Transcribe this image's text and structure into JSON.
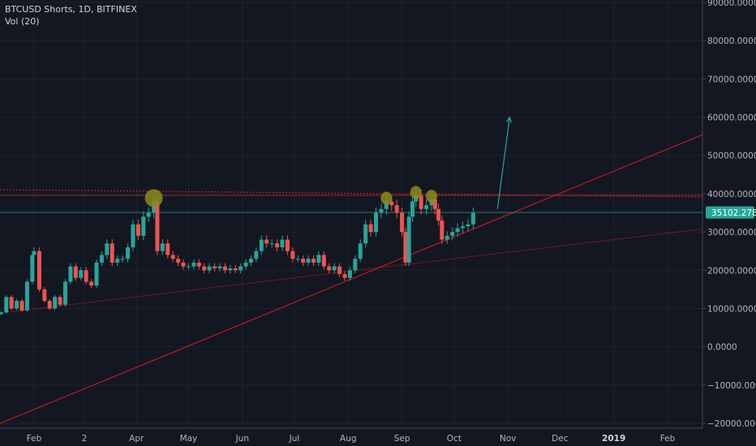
{
  "header": {
    "symbol_line": "BTCUSD Shorts, 1D, BITFINEX",
    "indicator_line": "Vol (20)"
  },
  "colors": {
    "background": "#131722",
    "grid": "#1e222d",
    "up": "#26a69a",
    "down": "#ef5350",
    "axis_text": "#b2b5be",
    "price_label_bg": "#26a69a",
    "trendline": "#b71c1c",
    "resistance": "#c62828",
    "arrow": "#26a69a",
    "marker": "#8d8a1e"
  },
  "chart_data": {
    "type": "candlestick",
    "title": "BTCUSD Shorts, 1D, BITFINEX",
    "ylim": [
      -20000,
      90000
    ],
    "y_ticks": [
      {
        "value": 90000,
        "label": "90000.0000"
      },
      {
        "value": 80000,
        "label": "80000.0000"
      },
      {
        "value": 70000,
        "label": "70000.0000"
      },
      {
        "value": 60000,
        "label": "60000.0000"
      },
      {
        "value": 50000,
        "label": "50000.0000"
      },
      {
        "value": 40000,
        "label": "40000.0000"
      },
      {
        "value": 30000,
        "label": "30000.0000"
      },
      {
        "value": 20000,
        "label": "20000.0000"
      },
      {
        "value": 10000,
        "label": "10000.0000"
      },
      {
        "value": 0,
        "label": "0.0000"
      },
      {
        "value": -10000,
        "label": "−10000.0000"
      },
      {
        "value": -20000,
        "label": "−20000.0000"
      }
    ],
    "x_ticks": [
      {
        "date": "2018-02-01",
        "label": "Feb",
        "bold": false
      },
      {
        "date": "2018-03-02",
        "label": "2",
        "bold": false
      },
      {
        "date": "2018-04-01",
        "label": "Apr",
        "bold": false
      },
      {
        "date": "2018-05-01",
        "label": "May",
        "bold": false
      },
      {
        "date": "2018-06-01",
        "label": "Jun",
        "bold": false
      },
      {
        "date": "2018-07-01",
        "label": "Jul",
        "bold": false
      },
      {
        "date": "2018-08-01",
        "label": "Aug",
        "bold": false
      },
      {
        "date": "2018-09-01",
        "label": "Sep",
        "bold": false
      },
      {
        "date": "2018-10-01",
        "label": "Oct",
        "bold": false
      },
      {
        "date": "2018-11-01",
        "label": "Nov",
        "bold": false
      },
      {
        "date": "2018-12-01",
        "label": "Dec",
        "bold": false
      },
      {
        "date": "2019-01-01",
        "label": "2019",
        "bold": true
      },
      {
        "date": "2019-02-01",
        "label": "Feb",
        "bold": false
      }
    ],
    "last_price": {
      "value": 35102.2784,
      "label": "35102.2784"
    },
    "series": [
      {
        "name": "BTCUSD Shorts",
        "points": [
          [
            "2018-01-13",
            9000
          ],
          [
            "2018-01-16",
            13000
          ],
          [
            "2018-01-19",
            10000
          ],
          [
            "2018-01-22",
            12000
          ],
          [
            "2018-01-25",
            9500
          ],
          [
            "2018-01-28",
            17000
          ],
          [
            "2018-01-31",
            24000
          ],
          [
            "2018-02-01",
            25000
          ],
          [
            "2018-02-04",
            15000
          ],
          [
            "2018-02-07",
            12000
          ],
          [
            "2018-02-10",
            10000
          ],
          [
            "2018-02-13",
            13000
          ],
          [
            "2018-02-16",
            11000
          ],
          [
            "2018-02-19",
            17000
          ],
          [
            "2018-02-22",
            21000
          ],
          [
            "2018-02-25",
            18000
          ],
          [
            "2018-02-28",
            20000
          ],
          [
            "2018-03-03",
            17000
          ],
          [
            "2018-03-06",
            16000
          ],
          [
            "2018-03-09",
            22000
          ],
          [
            "2018-03-12",
            24000
          ],
          [
            "2018-03-15",
            27000
          ],
          [
            "2018-03-18",
            22000
          ],
          [
            "2018-03-21",
            23000
          ],
          [
            "2018-03-24",
            23000
          ],
          [
            "2018-03-27",
            26000
          ],
          [
            "2018-03-30",
            32000
          ],
          [
            "2018-04-02",
            29000
          ],
          [
            "2018-04-05",
            34000
          ],
          [
            "2018-04-08",
            35000
          ],
          [
            "2018-04-11",
            38000
          ],
          [
            "2018-04-13",
            25000
          ],
          [
            "2018-04-16",
            27000
          ],
          [
            "2018-04-19",
            24000
          ],
          [
            "2018-04-22",
            23000
          ],
          [
            "2018-04-25",
            22000
          ],
          [
            "2018-04-28",
            21000
          ],
          [
            "2018-05-01",
            21000
          ],
          [
            "2018-05-04",
            22000
          ],
          [
            "2018-05-07",
            21000
          ],
          [
            "2018-05-10",
            20000
          ],
          [
            "2018-05-13",
            21000
          ],
          [
            "2018-05-16",
            20500
          ],
          [
            "2018-05-19",
            21000
          ],
          [
            "2018-05-22",
            20000
          ],
          [
            "2018-05-25",
            20500
          ],
          [
            "2018-05-28",
            20000
          ],
          [
            "2018-05-31",
            21000
          ],
          [
            "2018-06-03",
            22000
          ],
          [
            "2018-06-06",
            23000
          ],
          [
            "2018-06-09",
            25000
          ],
          [
            "2018-06-12",
            28000
          ],
          [
            "2018-06-15",
            27000
          ],
          [
            "2018-06-18",
            27000
          ],
          [
            "2018-06-21",
            26000
          ],
          [
            "2018-06-24",
            28000
          ],
          [
            "2018-06-27",
            25000
          ],
          [
            "2018-06-30",
            23000
          ],
          [
            "2018-07-03",
            23000
          ],
          [
            "2018-07-06",
            22000
          ],
          [
            "2018-07-09",
            23000
          ],
          [
            "2018-07-12",
            22000
          ],
          [
            "2018-07-15",
            24000
          ],
          [
            "2018-07-18",
            21000
          ],
          [
            "2018-07-21",
            20000
          ],
          [
            "2018-07-24",
            21000
          ],
          [
            "2018-07-27",
            19000
          ],
          [
            "2018-07-30",
            18000
          ],
          [
            "2018-08-02",
            20000
          ],
          [
            "2018-08-05",
            23000
          ],
          [
            "2018-08-08",
            27000
          ],
          [
            "2018-08-11",
            32000
          ],
          [
            "2018-08-14",
            30000
          ],
          [
            "2018-08-17",
            35000
          ],
          [
            "2018-08-20",
            36000
          ],
          [
            "2018-08-23",
            38000
          ],
          [
            "2018-08-26",
            37000
          ],
          [
            "2018-08-29",
            35000
          ],
          [
            "2018-09-01",
            30000
          ],
          [
            "2018-09-03",
            22000
          ],
          [
            "2018-09-05",
            34000
          ],
          [
            "2018-09-07",
            38000
          ],
          [
            "2018-09-09",
            39500
          ],
          [
            "2018-09-12",
            36000
          ],
          [
            "2018-09-15",
            37000
          ],
          [
            "2018-09-18",
            38500
          ],
          [
            "2018-09-20",
            36000
          ],
          [
            "2018-09-22",
            33000
          ],
          [
            "2018-09-24",
            28000
          ],
          [
            "2018-09-27",
            29000
          ],
          [
            "2018-09-30",
            30000
          ],
          [
            "2018-10-03",
            31000
          ],
          [
            "2018-10-06",
            31500
          ],
          [
            "2018-10-09",
            32000
          ],
          [
            "2018-10-12",
            35000
          ]
        ]
      }
    ],
    "annotations": {
      "resistance_value": 40000,
      "markers": [
        "2018-04-11",
        "2018-08-23",
        "2018-09-09",
        "2018-09-18"
      ],
      "arrow": {
        "from": [
          "2018-10-26",
          36000
        ],
        "to": [
          "2018-11-02",
          60000
        ]
      }
    }
  }
}
